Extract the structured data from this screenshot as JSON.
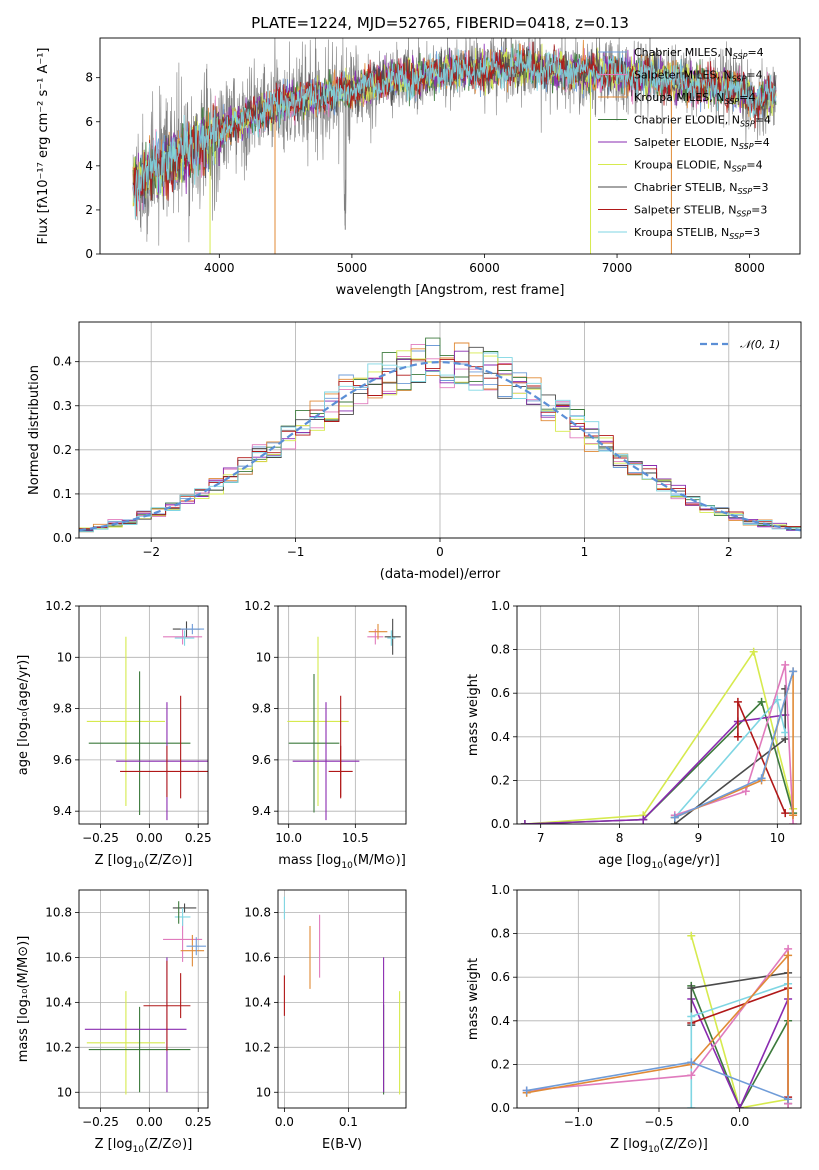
{
  "figure_title": "PLATE=1224, MJD=52765, FIBERID=0418, z=0.13",
  "colors": {
    "Chabrier MILES": "#6f9cd8",
    "Salpeter MILES": "#e07bbd",
    "Kroupa MILES": "#e08a36",
    "Chabrier ELODIE": "#3c7a3c",
    "Salpeter ELODIE": "#8a2bb0",
    "Kroupa ELODIE": "#d6ea4e",
    "Chabrier STELIB": "#4a4a4a",
    "Salpeter STELIB": "#b01818",
    "Kroupa STELIB": "#7fd6e3",
    "data": "#808080",
    "normal": "#5b8fd6"
  },
  "chart_data": [
    {
      "id": "spectrum",
      "type": "line",
      "title": "PLATE=1224, MJD=52765, FIBERID=0418, z=0.13",
      "xlabel": "wavelength [Angstrom, rest frame]",
      "ylabel": "Flux [fλ10⁻¹⁷ erg cm⁻² s⁻¹ A⁻¹]",
      "xlim": [
        3100,
        8380
      ],
      "ylim": [
        0,
        9.8
      ],
      "xticks": [
        4000,
        5000,
        6000,
        7000,
        8000
      ],
      "yticks": [
        0,
        2,
        4,
        6,
        8
      ],
      "legend_position": "upper right",
      "legend": [
        {
          "name": "Chabrier MILES, N_SSP=4",
          "main": "Chabrier MILES, N",
          "sub": "SSP",
          "tail": "=4"
        },
        {
          "name": "Salpeter MILES, N_SSP=4",
          "main": "Salpeter MILES, N",
          "sub": "SSP",
          "tail": "=4"
        },
        {
          "name": "Kroupa MILES, N_SSP=4",
          "main": "Kroupa MILES, N",
          "sub": "SSP",
          "tail": "=4"
        },
        {
          "name": "Chabrier ELODIE, N_SSP=4",
          "main": "Chabrier ELODIE, N",
          "sub": "SSP",
          "tail": "=4"
        },
        {
          "name": "Salpeter ELODIE, N_SSP=4",
          "main": "Salpeter ELODIE, N",
          "sub": "SSP",
          "tail": "=4"
        },
        {
          "name": "Kroupa ELODIE, N_SSP=4",
          "main": "Kroupa ELODIE, N",
          "sub": "SSP",
          "tail": "=4"
        },
        {
          "name": "Chabrier STELIB, N_SSP=3",
          "main": "Chabrier STELIB, N",
          "sub": "SSP",
          "tail": "=3"
        },
        {
          "name": "Salpeter STELIB, N_SSP=3",
          "main": "Salpeter STELIB, N",
          "sub": "SSP",
          "tail": "=3"
        },
        {
          "name": "Kroupa STELIB, N_SSP=3",
          "main": "Kroupa STELIB, N",
          "sub": "SSP",
          "tail": "=3"
        }
      ],
      "continuum": {
        "x": [
          3350,
          3500,
          3700,
          3900,
          4100,
          4300,
          4500,
          4700,
          4900,
          5100,
          5300,
          5500,
          5700,
          5900,
          6100,
          6300,
          6500,
          6700,
          6900,
          7100,
          7300,
          7500,
          7700,
          7900,
          8050,
          8150
        ],
        "y": [
          3.2,
          3.7,
          4.4,
          5.1,
          5.9,
          6.4,
          6.9,
          7.1,
          7.3,
          7.6,
          7.9,
          8.0,
          8.3,
          8.3,
          8.4,
          8.5,
          8.4,
          8.2,
          8.3,
          8.1,
          8.0,
          7.8,
          7.6,
          7.4,
          6.9,
          7.2
        ]
      },
      "cutoffs": [
        {
          "series": "Kroupa ELODIE",
          "x": 3930
        },
        {
          "series": "Kroupa MILES",
          "x": 4420
        },
        {
          "series": "Kroupa ELODIE",
          "x": 6800
        },
        {
          "series": "Kroupa MILES",
          "x": 7410
        }
      ],
      "cutoff_gray_x": 4950,
      "cutoff_gray_y": 1.1
    },
    {
      "id": "residuals",
      "type": "histogram",
      "xlabel": "(data-model)/error",
      "ylabel": "Normed distribution",
      "xlim": [
        -2.5,
        2.5
      ],
      "ylim": [
        0,
        0.49
      ],
      "xticks": [
        -2,
        -1,
        0,
        1,
        2
      ],
      "xtick_labels": [
        "−2",
        "−1",
        "0",
        "1",
        "2"
      ],
      "yticks": [
        0,
        0.1,
        0.2,
        0.3,
        0.4
      ],
      "ytick_labels": [
        "0.0",
        "0.1",
        "0.2",
        "0.3",
        "0.4"
      ],
      "grid": true,
      "legend_position": "upper right",
      "legend_label": "𝒩(0, 1)",
      "bin_width": 0.1,
      "bin_start": -2.5
    },
    {
      "id": "z-vs-age",
      "type": "scatter",
      "xlabel_main": "Z [log",
      "xlabel_sub": "10",
      "xlabel_tail": "(Z/Z⊙)]",
      "ylabel": "age  [log₁₀(age/yr)]",
      "xlim": [
        -0.36,
        0.3
      ],
      "ylim": [
        9.35,
        10.2
      ],
      "xticks": [
        -0.25,
        0.0,
        0.25
      ],
      "xtick_labels": [
        "−0.25",
        "0.00",
        "0.25"
      ],
      "yticks": [
        9.4,
        9.6,
        9.8,
        10.0,
        10.2
      ],
      "grid": true,
      "points": [
        {
          "series": "Kroupa ELODIE",
          "x": -0.12,
          "y": 9.75,
          "xerr": 0.2,
          "yerr": 0.33
        },
        {
          "series": "Chabrier ELODIE",
          "x": -0.05,
          "y": 9.665,
          "xerr": 0.26,
          "yerr": 0.28
        },
        {
          "series": "Salpeter ELODIE",
          "x": 0.09,
          "y": 9.595,
          "xerr": 0.26,
          "yerr": 0.23
        },
        {
          "series": "Salpeter STELIB",
          "x": 0.09,
          "y": 9.555,
          "xerr": 0.24,
          "yerr": 0.1
        },
        {
          "series": "Salpeter STELIB",
          "x": 0.16,
          "y": 9.65,
          "xerr": 0.0,
          "yerr": 0.2
        },
        {
          "series": "Salpeter MILES",
          "x": 0.17,
          "y": 10.08,
          "xerr": 0.1,
          "yerr": 0.03
        },
        {
          "series": "Chabrier STELIB",
          "x": 0.19,
          "y": 10.11,
          "xerr": 0.07,
          "yerr": 0.03
        },
        {
          "series": "Kroupa STELIB",
          "x": 0.18,
          "y": 10.075,
          "xerr": 0.05,
          "yerr": 0.03
        },
        {
          "series": "Chabrier MILES",
          "x": 0.22,
          "y": 10.11,
          "xerr": 0.06,
          "yerr": 0.02
        }
      ]
    },
    {
      "id": "mass-vs-age",
      "type": "scatter",
      "xlabel_main": "mass [log",
      "xlabel_sub": "10",
      "xlabel_tail": "(M/M⊙)]",
      "xlim": [
        9.92,
        10.88
      ],
      "ylim": [
        9.35,
        10.2
      ],
      "xticks": [
        10.0,
        10.5
      ],
      "xtick_labels": [
        "10.0",
        "10.5"
      ],
      "yticks": [
        9.4,
        9.6,
        9.8,
        10.0,
        10.2
      ],
      "grid": true,
      "points": [
        {
          "series": "Kroupa ELODIE",
          "x": 10.22,
          "y": 9.75,
          "xerr": 0.23,
          "yerr": 0.33
        },
        {
          "series": "Chabrier ELODIE",
          "x": 10.19,
          "y": 9.665,
          "xerr": 0.19,
          "yerr": 0.27
        },
        {
          "series": "Salpeter ELODIE",
          "x": 10.28,
          "y": 9.595,
          "xerr": 0.25,
          "yerr": 0.23
        },
        {
          "series": "Salpeter STELIB",
          "x": 10.39,
          "y": 9.555,
          "xerr": 0.09,
          "yerr": 0.1
        },
        {
          "series": "Salpeter STELIB",
          "x": 10.39,
          "y": 9.65,
          "xerr": 0.0,
          "yerr": 0.2
        },
        {
          "series": "Salpeter MILES",
          "x": 10.65,
          "y": 10.08,
          "xerr": 0.06,
          "yerr": 0.03
        },
        {
          "series": "Kroupa MILES",
          "x": 10.67,
          "y": 10.1,
          "xerr": 0.07,
          "yerr": 0.03
        },
        {
          "series": "Chabrier STELIB",
          "x": 10.78,
          "y": 10.08,
          "xerr": 0.06,
          "yerr": 0.07
        },
        {
          "series": "Kroupa STELIB",
          "x": 10.77,
          "y": 10.075,
          "xerr": 0.03,
          "yerr": 0.03
        }
      ]
    },
    {
      "id": "age-vs-weight",
      "type": "line",
      "xlabel_main": "age  [log",
      "xlabel_sub": "10",
      "xlabel_tail": "(age/yr)]",
      "ylabel": "mass weight",
      "xlim": [
        6.7,
        10.3
      ],
      "ylim": [
        0,
        1.0
      ],
      "xticks": [
        7,
        8,
        9,
        10
      ],
      "yticks": [
        0,
        0.2,
        0.4,
        0.6,
        0.8,
        1.0
      ],
      "ytick_labels": [
        "0.0",
        "0.2",
        "0.4",
        "0.6",
        "0.8",
        "1.0"
      ],
      "grid": true,
      "series": [
        {
          "series": "Kroupa ELODIE",
          "x": [
            6.8,
            8.3,
            9.7,
            10.2
          ],
          "y": [
            0.0,
            0.04,
            0.79,
            0.07
          ]
        },
        {
          "series": "Chabrier ELODIE",
          "x": [
            6.8,
            8.3,
            9.8,
            10.2
          ],
          "y": [
            0.0,
            0.02,
            0.56,
            0.05
          ]
        },
        {
          "series": "Salpeter ELODIE",
          "x": [
            6.8,
            8.3,
            9.5,
            10.1
          ],
          "y": [
            0.0,
            0.02,
            0.47,
            0.5
          ]
        },
        {
          "series": "Salpeter STELIB",
          "x": [
            9.5,
            9.5,
            10.1
          ],
          "y": [
            0.4,
            0.56,
            0.05
          ]
        },
        {
          "series": "Chabrier STELIB",
          "x": [
            8.7,
            10.1,
            10.1
          ],
          "y": [
            0.0,
            0.39,
            0.62
          ]
        },
        {
          "series": "Kroupa STELIB",
          "x": [
            8.7,
            10.0,
            10.1
          ],
          "y": [
            0.03,
            0.57,
            0.42
          ]
        },
        {
          "series": "Salpeter MILES",
          "x": [
            8.7,
            9.6,
            10.1,
            10.2
          ],
          "y": [
            0.04,
            0.15,
            0.73,
            0.0
          ]
        },
        {
          "series": "Kroupa MILES",
          "x": [
            8.7,
            9.8,
            10.2,
            10.2
          ],
          "y": [
            0.03,
            0.2,
            0.7,
            0.04
          ]
        },
        {
          "series": "Chabrier MILES",
          "x": [
            8.7,
            9.8,
            10.2
          ],
          "y": [
            0.03,
            0.21,
            0.7
          ]
        }
      ]
    },
    {
      "id": "z-vs-mass",
      "type": "scatter",
      "xlabel_main": "Z [log",
      "xlabel_sub": "10",
      "xlabel_tail": "(Z/Z⊙)]",
      "ylabel": "mass [log₁₀(M/M⊙)]",
      "xlim": [
        -0.36,
        0.3
      ],
      "ylim": [
        9.93,
        10.9
      ],
      "xticks": [
        -0.25,
        0.0,
        0.25
      ],
      "xtick_labels": [
        "−0.25",
        "0.00",
        "0.25"
      ],
      "yticks": [
        10.0,
        10.2,
        10.4,
        10.6,
        10.8
      ],
      "grid": true,
      "points": [
        {
          "series": "Kroupa ELODIE",
          "x": -0.12,
          "y": 10.22,
          "xerr": 0.2,
          "yerr": 0.23
        },
        {
          "series": "Chabrier ELODIE",
          "x": -0.05,
          "y": 10.19,
          "xerr": 0.26,
          "yerr": 0.19
        },
        {
          "series": "Salpeter ELODIE",
          "x": -0.07,
          "y": 10.28,
          "xerr": 0.26,
          "yerr": 0.0
        },
        {
          "series": "Salpeter ELODIE",
          "x": 0.09,
          "y": 10.3,
          "xerr": 0.0,
          "yerr": 0.3
        },
        {
          "series": "Salpeter STELIB",
          "x": 0.09,
          "y": 10.385,
          "xerr": 0.12,
          "yerr": 0.2
        },
        {
          "series": "Salpeter STELIB",
          "x": 0.16,
          "y": 10.43,
          "xerr": 0.0,
          "yerr": 0.1
        },
        {
          "series": "Salpeter MILES",
          "x": 0.17,
          "y": 10.68,
          "xerr": 0.1,
          "yerr": 0.1
        },
        {
          "series": "Kroupa MILES",
          "x": 0.22,
          "y": 10.63,
          "xerr": 0.06,
          "yerr": 0.07
        },
        {
          "series": "Chabrier MILES",
          "x": 0.24,
          "y": 10.65,
          "xerr": 0.05,
          "yerr": 0.04
        },
        {
          "series": "Chabrier STELIB",
          "x": 0.18,
          "y": 10.82,
          "xerr": 0.06,
          "yerr": 0.02
        },
        {
          "series": "Kroupa STELIB",
          "x": 0.17,
          "y": 10.78,
          "xerr": 0.04,
          "yerr": 0.04
        },
        {
          "series": "Chabrier ELODIE",
          "x": 0.15,
          "y": 10.8,
          "xerr": 0.0,
          "yerr": 0.05
        }
      ]
    },
    {
      "id": "ebv-vs-mass",
      "type": "scatter",
      "xlabel": "E(B-V)",
      "xlim": [
        -0.01,
        0.19
      ],
      "ylim": [
        9.93,
        10.9
      ],
      "xticks": [
        0.0,
        0.1
      ],
      "xtick_labels": [
        "0.0",
        "0.1"
      ],
      "yticks": [
        10.0,
        10.2,
        10.4,
        10.6,
        10.8
      ],
      "grid": true,
      "points": [
        {
          "series": "Kroupa STELIB",
          "x": 0.0,
          "y": 10.82,
          "xerr": 0.0,
          "yerr": 0.05
        },
        {
          "series": "Salpeter STELIB",
          "x": 0.0,
          "y": 10.43,
          "xerr": 0.0,
          "yerr": 0.09
        },
        {
          "series": "Kroupa MILES",
          "x": 0.04,
          "y": 10.6,
          "xerr": 0.0,
          "yerr": 0.14
        },
        {
          "series": "Salpeter MILES",
          "x": 0.055,
          "y": 10.65,
          "xerr": 0.0,
          "yerr": 0.14
        },
        {
          "series": "Chabrier ELODIE",
          "x": 0.155,
          "y": 10.19,
          "xerr": 0.0,
          "yerr": 0.2
        },
        {
          "series": "Salpeter ELODIE",
          "x": 0.155,
          "y": 10.3,
          "xerr": 0.0,
          "yerr": 0.3
        },
        {
          "series": "Kroupa ELODIE",
          "x": 0.18,
          "y": 10.22,
          "xerr": 0.0,
          "yerr": 0.23
        }
      ]
    },
    {
      "id": "z-vs-weight",
      "type": "line",
      "xlabel_main": "Z [log",
      "xlabel_sub": "10",
      "xlabel_tail": "(Z/Z⊙)]",
      "ylabel": "mass weight",
      "xlim": [
        -1.38,
        0.38
      ],
      "ylim": [
        0,
        1.0
      ],
      "xticks": [
        -1.0,
        -0.5,
        0.0
      ],
      "xtick_labels": [
        "−1.0",
        "−0.5",
        "0.0"
      ],
      "yticks": [
        0,
        0.2,
        0.4,
        0.6,
        0.8,
        1.0
      ],
      "ytick_labels": [
        "0.0",
        "0.2",
        "0.4",
        "0.6",
        "0.8",
        "1.0"
      ],
      "grid": true,
      "series": [
        {
          "series": "Kroupa ELODIE",
          "x": [
            -0.3,
            0.0,
            0.3
          ],
          "y": [
            0.79,
            0.0,
            0.04
          ]
        },
        {
          "series": "Chabrier ELODIE",
          "x": [
            -0.3,
            0.0,
            0.3
          ],
          "y": [
            0.56,
            0.0,
            0.4
          ]
        },
        {
          "series": "Salpeter ELODIE",
          "x": [
            -0.3,
            0.0,
            0.3
          ],
          "y": [
            0.5,
            0.0,
            0.5
          ]
        },
        {
          "series": "Salpeter STELIB",
          "x": [
            -0.3,
            0.3,
            0.3
          ],
          "y": [
            0.39,
            0.55,
            0.05
          ]
        },
        {
          "series": "Chabrier STELIB",
          "x": [
            -0.3,
            -0.3,
            0.3,
            0.3
          ],
          "y": [
            0.38,
            0.55,
            0.62,
            0.02
          ]
        },
        {
          "series": "Kroupa STELIB",
          "x": [
            -0.3,
            -0.3,
            0.3
          ],
          "y": [
            0.0,
            0.42,
            0.57
          ]
        },
        {
          "series": "Salpeter MILES",
          "x": [
            -1.32,
            -0.3,
            0.3,
            0.3
          ],
          "y": [
            0.08,
            0.15,
            0.73,
            0.02
          ]
        },
        {
          "series": "Kroupa MILES",
          "x": [
            -1.32,
            -0.3,
            0.3,
            0.3
          ],
          "y": [
            0.07,
            0.2,
            0.7,
            0.04
          ]
        },
        {
          "series": "Chabrier MILES",
          "x": [
            -1.32,
            -0.3,
            0.3
          ],
          "y": [
            0.08,
            0.21,
            0.04
          ]
        }
      ]
    }
  ]
}
